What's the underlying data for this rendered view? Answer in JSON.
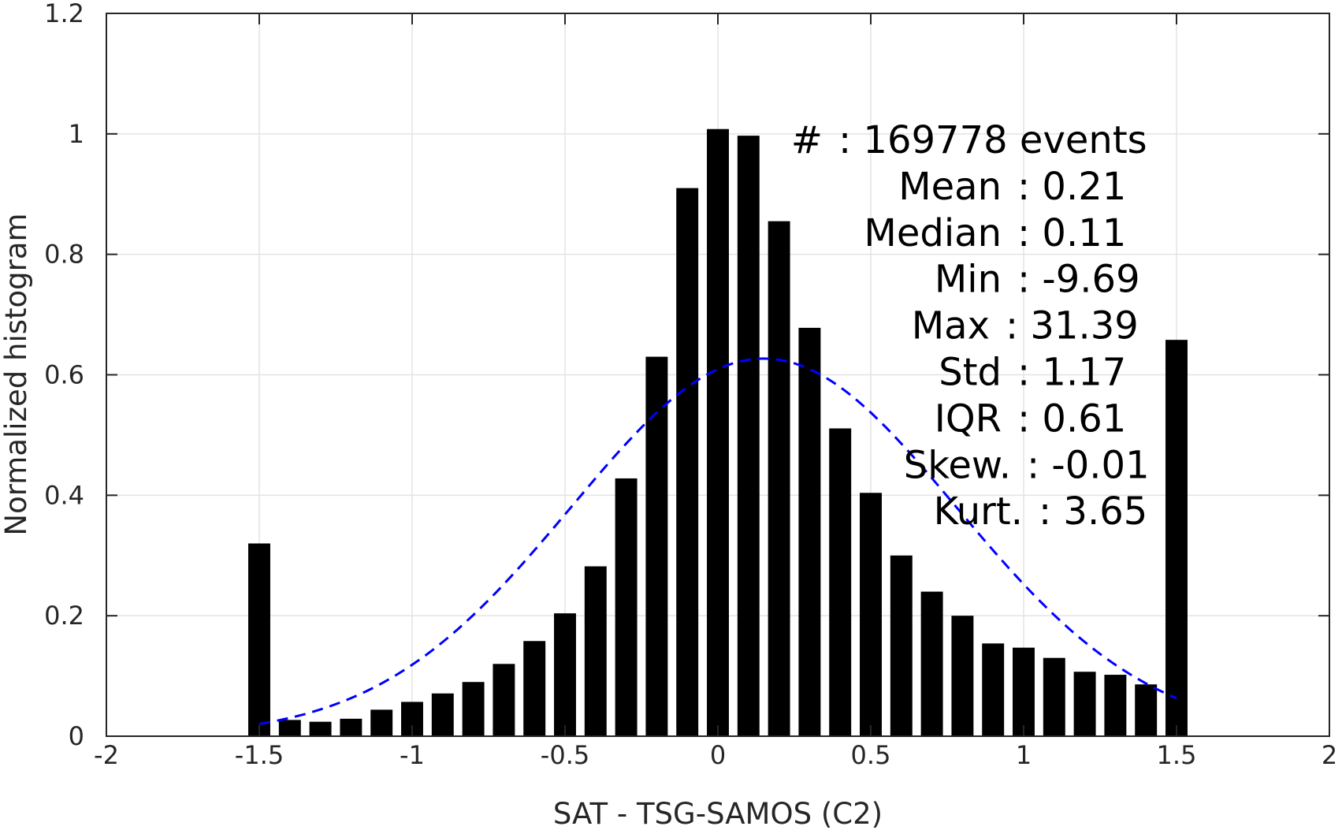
{
  "chart_data": {
    "type": "bar",
    "xlabel": "SAT - TSG-SAMOS (C2)",
    "ylabel": "Normalized histogram",
    "xlim": [
      -2,
      2
    ],
    "ylim": [
      0,
      1.2
    ],
    "x_ticks": [
      -2,
      -1.5,
      -1,
      -0.5,
      0,
      0.5,
      1,
      1.5,
      2
    ],
    "y_ticks": [
      0,
      0.2,
      0.4,
      0.6,
      0.8,
      1,
      1.2
    ],
    "x_tick_labels": [
      "-2",
      "-1.5",
      "-1",
      "-0.5",
      "0",
      "0.5",
      "1",
      "1.5",
      "2"
    ],
    "y_tick_labels": [
      "0",
      "0.2",
      "0.4",
      "0.6",
      "0.8",
      "1",
      "1.2"
    ],
    "grid": true,
    "bar_color": "#000000",
    "bars": {
      "x": [
        -1.5,
        -1.4,
        -1.3,
        -1.2,
        -1.1,
        -1.0,
        -0.9,
        -0.8,
        -0.7,
        -0.6,
        -0.5,
        -0.4,
        -0.3,
        -0.2,
        -0.1,
        0.0,
        0.1,
        0.2,
        0.3,
        0.4,
        0.5,
        0.6,
        0.7,
        0.8,
        0.9,
        1.0,
        1.1,
        1.2,
        1.3,
        1.4,
        1.5
      ],
      "values": [
        0.32,
        0.027,
        0.024,
        0.029,
        0.044,
        0.057,
        0.071,
        0.09,
        0.12,
        0.158,
        0.204,
        0.282,
        0.428,
        0.63,
        0.91,
        1.008,
        0.997,
        0.855,
        0.678,
        0.511,
        0.404,
        0.3,
        0.24,
        0.2,
        0.154,
        0.147,
        0.13,
        0.107,
        0.102,
        0.086,
        0.658
      ]
    },
    "fit_curve": {
      "style": "dashed",
      "color": "#0000ff",
      "x_range": [
        -1.5,
        1.5
      ],
      "mean": 0.15,
      "peak": 0.627,
      "std": 0.63
    },
    "stats_lines": [
      {
        "label": "#",
        "value": ": 169778 events"
      },
      {
        "label": "Mean",
        "value": ": 0.21"
      },
      {
        "label": "Median",
        "value": ": 0.11"
      },
      {
        "label": "Min",
        "value": ": -9.69"
      },
      {
        "label": "Max",
        "value": ": 31.39"
      },
      {
        "label": "Std",
        "value": ": 1.17"
      },
      {
        "label": "IQR",
        "value": ": 0.61"
      },
      {
        "label": "Skew.",
        "value": ": -0.01"
      },
      {
        "label": "Kurt.",
        "value": ": 3.65"
      }
    ]
  }
}
